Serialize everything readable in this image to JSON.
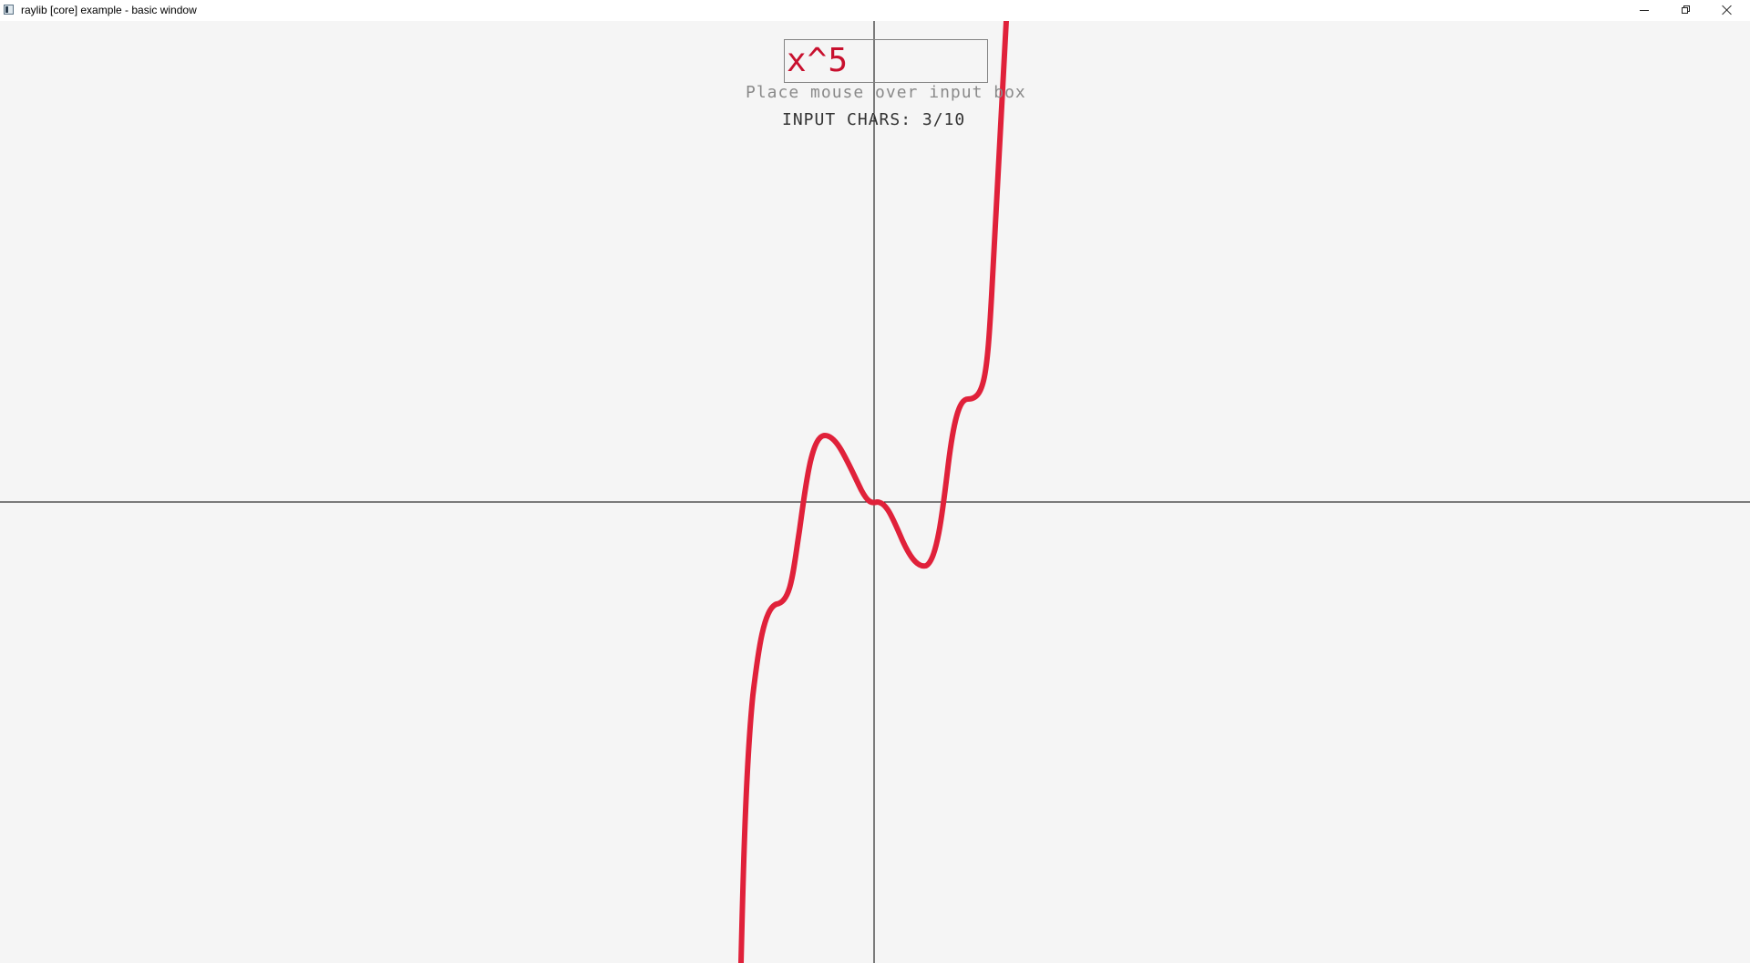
{
  "window": {
    "title": "raylib [core] example - basic window"
  },
  "controls": {
    "minimize_icon": "minimize-icon",
    "maximize_icon": "restore-icon",
    "close_icon": "close-icon"
  },
  "input": {
    "value": "x^5",
    "hint": "Place mouse over input box",
    "counter": "INPUT CHARS: 3/10"
  },
  "colors": {
    "background": "#f5f5f5",
    "curve": "#e0213a",
    "axes": "#000000",
    "input_text": "#c8102e"
  }
}
